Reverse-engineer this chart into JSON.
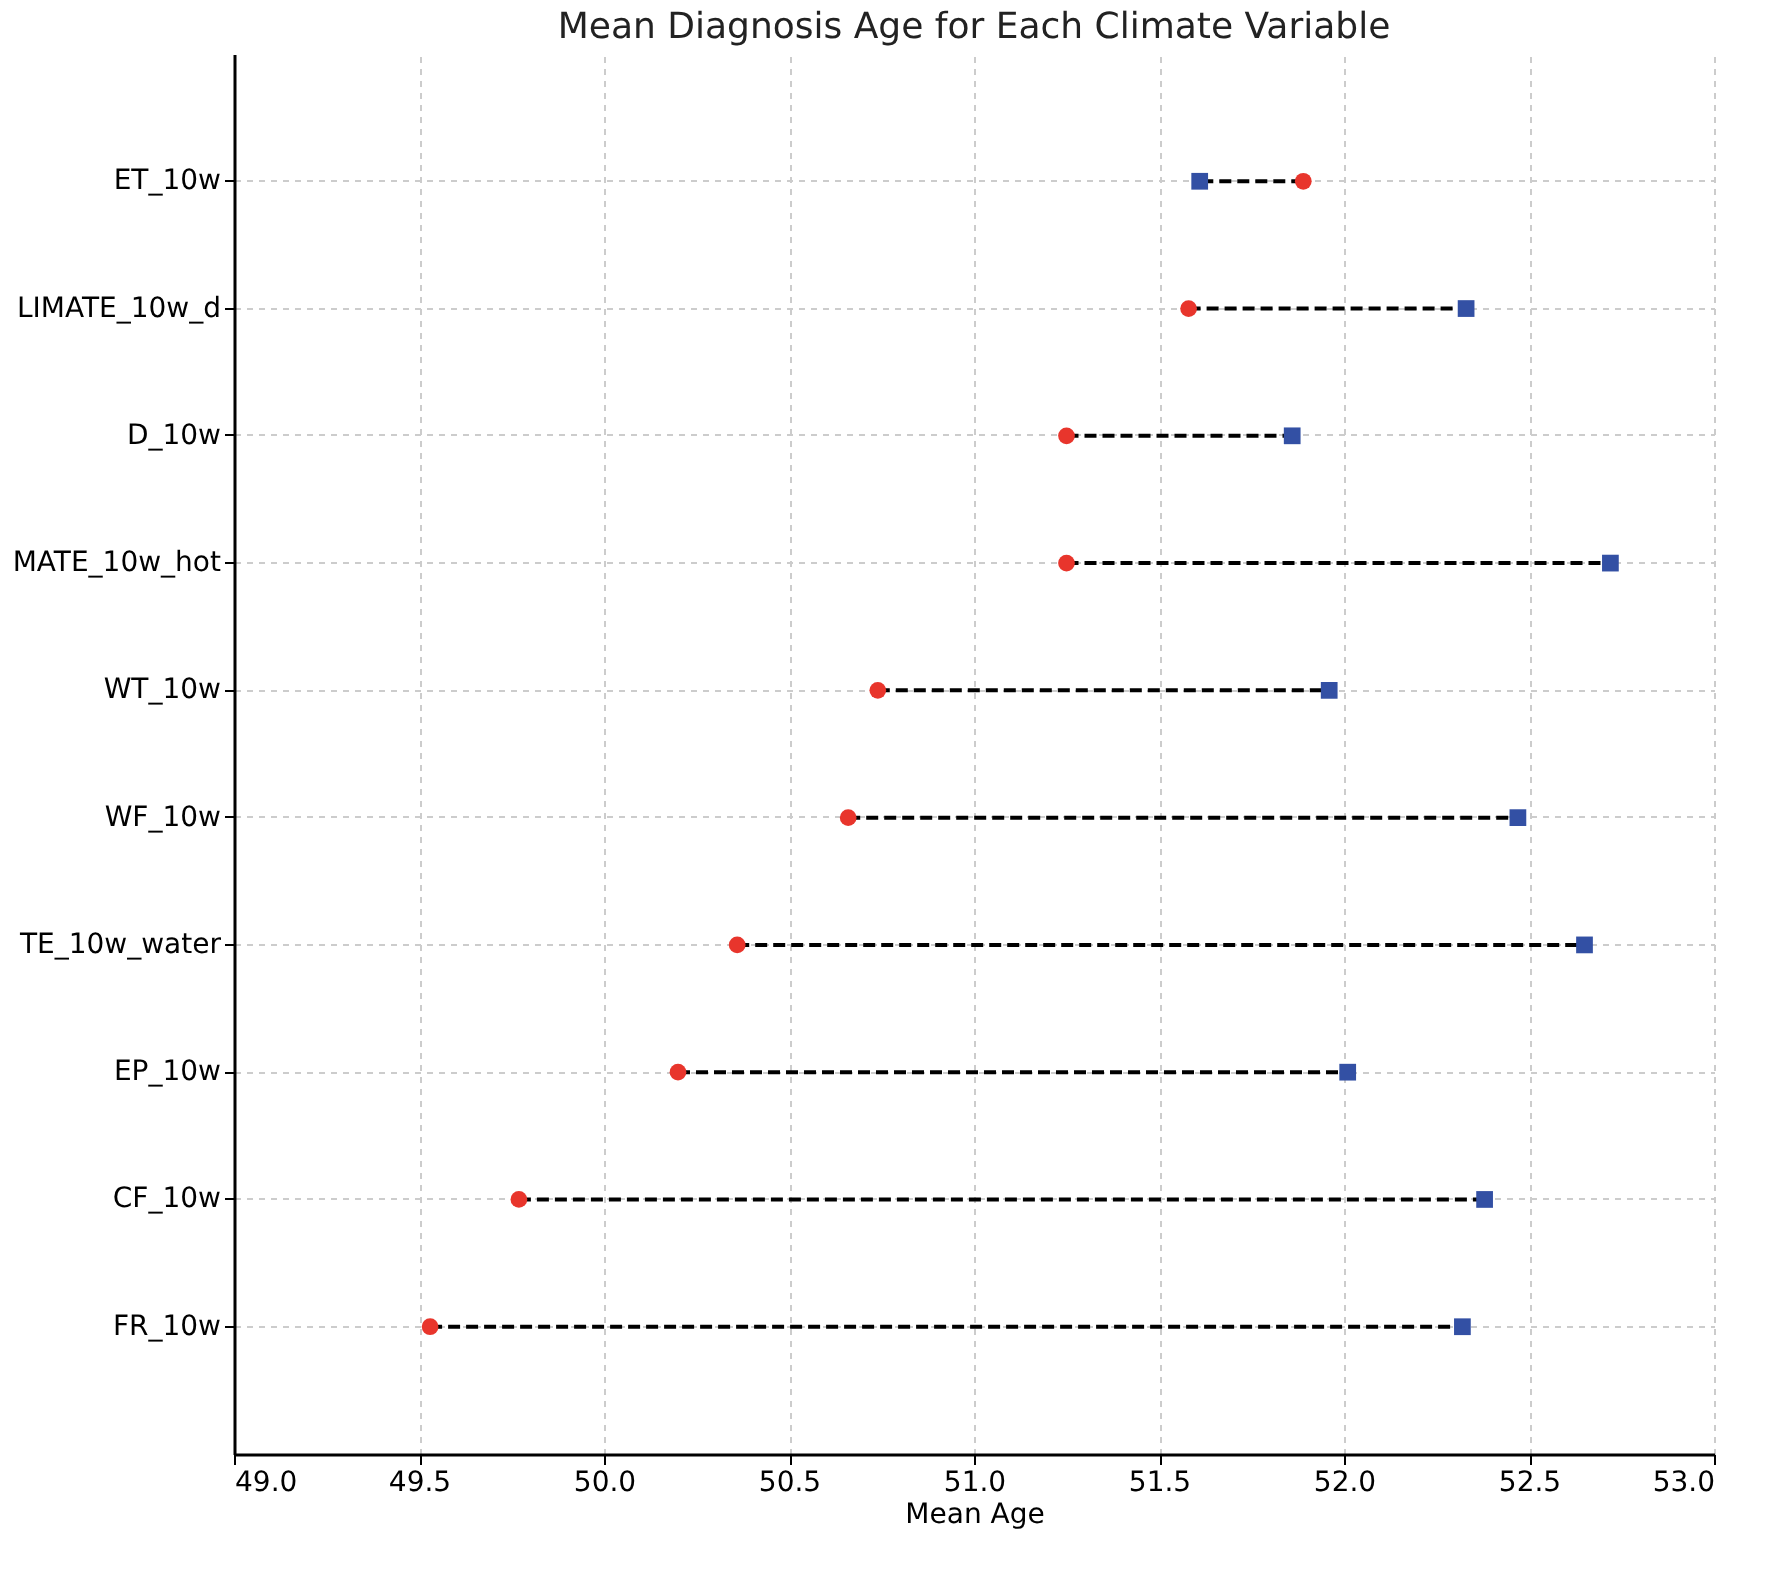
{
  "chart_data": {
    "type": "scatter",
    "title": "Mean Diagnosis Age for Each Climate Variable",
    "xlabel": "Mean Age",
    "orientation": "horizontal",
    "categories": [
      "ET_10w",
      "LIMATE_10w_d",
      "D_10w",
      "MATE_10w_hot",
      "WT_10w",
      "WF_10w",
      "TE_10w_water",
      "EP_10w",
      "CF_10w",
      "FR_10w"
    ],
    "series": [
      {
        "color": "#e8352c",
        "marker": "circle",
        "values": [
          51.89,
          51.58,
          51.25,
          51.25,
          50.74,
          50.66,
          50.36,
          50.2,
          49.77,
          49.53
        ]
      },
      {
        "color": "#3350a4",
        "marker": "square",
        "values": [
          51.61,
          52.33,
          51.86,
          52.72,
          51.96,
          52.47,
          52.65,
          52.01,
          52.38,
          52.32
        ]
      }
    ],
    "xlim": [
      49.0,
      53.0
    ],
    "xticks": [
      {
        "value": 49,
        "label": "49.0"
      },
      49.5,
      {
        "value": 50,
        "label": "50.0"
      },
      50.5,
      {
        "value": 51,
        "label": "51.0"
      },
      51.5,
      {
        "value": 52,
        "label": "52.0"
      },
      52.5,
      {
        "value": 53,
        "label": "53.0"
      }
    ],
    "line_style": "dashed",
    "grid": true
  }
}
